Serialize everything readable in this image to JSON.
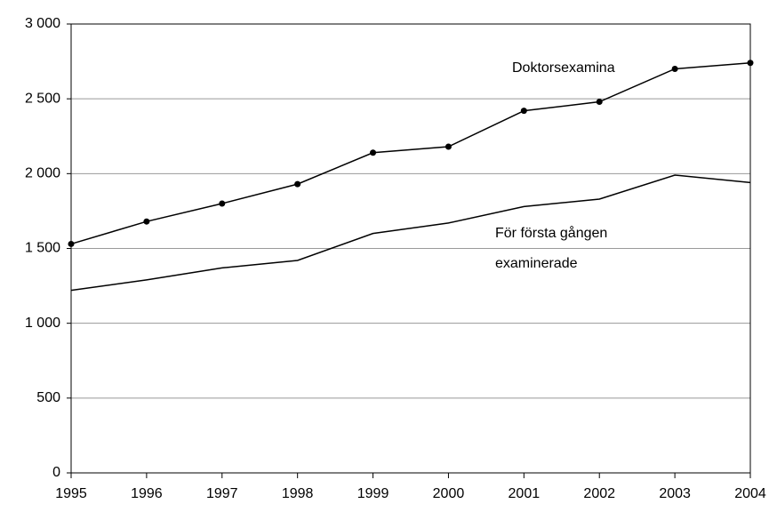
{
  "chart_data": {
    "type": "line",
    "x": [
      1995,
      1996,
      1997,
      1998,
      1999,
      2000,
      2001,
      2002,
      2003,
      2004
    ],
    "xlim": [
      1995,
      2004
    ],
    "xticks": [
      1995,
      1996,
      1997,
      1998,
      1999,
      2000,
      2001,
      2002,
      2003,
      2004
    ],
    "ylim": [
      0,
      3000
    ],
    "yticks": [
      0,
      500,
      {
        "value": 1000,
        "label": "1 000"
      },
      {
        "value": 1500,
        "label": "1 500"
      },
      {
        "value": 2000,
        "label": "2 000"
      },
      {
        "value": 2500,
        "label": "2 500"
      },
      {
        "value": 3000,
        "label": "3 000"
      }
    ],
    "grid": true,
    "series": [
      {
        "name": "Doktorsexamina",
        "color": "#000000",
        "marker": true,
        "values": [
          1530,
          1680,
          1800,
          1930,
          2140,
          2180,
          2420,
          2480,
          2700,
          2740
        ]
      },
      {
        "name": "För första gången examinerade",
        "color": "#000000",
        "marker": false,
        "values": [
          1220,
          1290,
          1370,
          1420,
          1600,
          1670,
          1780,
          1830,
          1990,
          1940
        ]
      }
    ]
  }
}
